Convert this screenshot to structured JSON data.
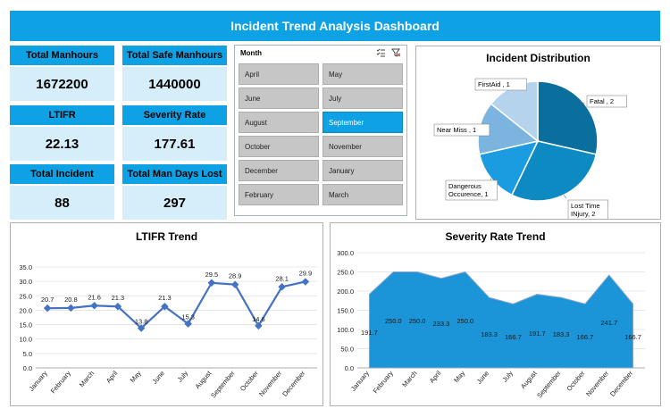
{
  "dashboard": {
    "title": "Incident Trend Analysis Dashboard"
  },
  "kpis": [
    {
      "label": "Total Manhours",
      "value": "1672200"
    },
    {
      "label": "Total Safe Manhours",
      "value": "1440000"
    },
    {
      "label": "LTIFR",
      "value": "22.13"
    },
    {
      "label": "Severity Rate",
      "value": "177.61"
    },
    {
      "label": "Total Incident",
      "value": "88"
    },
    {
      "label": "Total Man Days Lost",
      "value": "297"
    }
  ],
  "slicer": {
    "header": "Month",
    "icons": [
      "multi-select-icon",
      "clear-filter-icon"
    ],
    "selected": "September",
    "items": [
      "April",
      "May",
      "June",
      "July",
      "August",
      "September",
      "October",
      "November",
      "December",
      "January",
      "February",
      "March"
    ]
  },
  "incident_distribution": {
    "title": "Incident Distribution",
    "slices": [
      {
        "label": "Fatal , 2",
        "value": 2,
        "color": "#0b6f9e"
      },
      {
        "label": "Lost Time INjury, 2",
        "value": 2,
        "color": "#0e8ac2"
      },
      {
        "label": "Dangerous Occurence, 1",
        "value": 1,
        "color": "#1b9be0"
      },
      {
        "label": "Near Miss , 1",
        "value": 1,
        "color": "#7cb4e0"
      },
      {
        "label": "FirstAid , 1",
        "value": 1,
        "color": "#b6d3ee"
      }
    ]
  },
  "chart_data": [
    {
      "type": "line",
      "title": "LTIFR Trend",
      "categories": [
        "January",
        "February",
        "March",
        "April",
        "May",
        "June",
        "July",
        "August",
        "September",
        "October",
        "November",
        "December"
      ],
      "values": [
        20.7,
        20.8,
        21.6,
        21.3,
        13.8,
        21.3,
        15.3,
        29.5,
        28.9,
        14.6,
        28.1,
        29.9
      ],
      "data_labels": [
        "20.7",
        "20.8",
        "21.6",
        "21.3",
        "13.8",
        "21.3",
        "15.3",
        "29.5",
        "28.9",
        "14.6",
        "28.1",
        "29.9"
      ],
      "yticks": [
        "0.0",
        "5.0",
        "10.0",
        "15.0",
        "20.0",
        "25.0",
        "30.0",
        "35.0"
      ],
      "ylim": [
        0,
        35
      ],
      "grid": true,
      "color": "#4472c4"
    },
    {
      "type": "area",
      "title": "Severity Rate Trend",
      "categories": [
        "January",
        "February",
        "March",
        "April",
        "May",
        "June",
        "July",
        "August",
        "September",
        "October",
        "November",
        "December"
      ],
      "values": [
        191.7,
        250.0,
        250.0,
        233.3,
        250.0,
        183.3,
        166.7,
        191.7,
        183.3,
        166.7,
        241.7,
        166.7
      ],
      "data_labels": [
        "191.7",
        "250.0",
        "250.0",
        "233.3",
        "250.0",
        "183.3",
        "166.7",
        "191.7",
        "183.3",
        "166.7",
        "241.7",
        "166.7"
      ],
      "yticks": [
        "0.0",
        "50.0",
        "100.0",
        "150.0",
        "200.0",
        "250.0",
        "300.0"
      ],
      "ylim": [
        0,
        300
      ],
      "grid": true,
      "color": "#1b95d8"
    }
  ]
}
